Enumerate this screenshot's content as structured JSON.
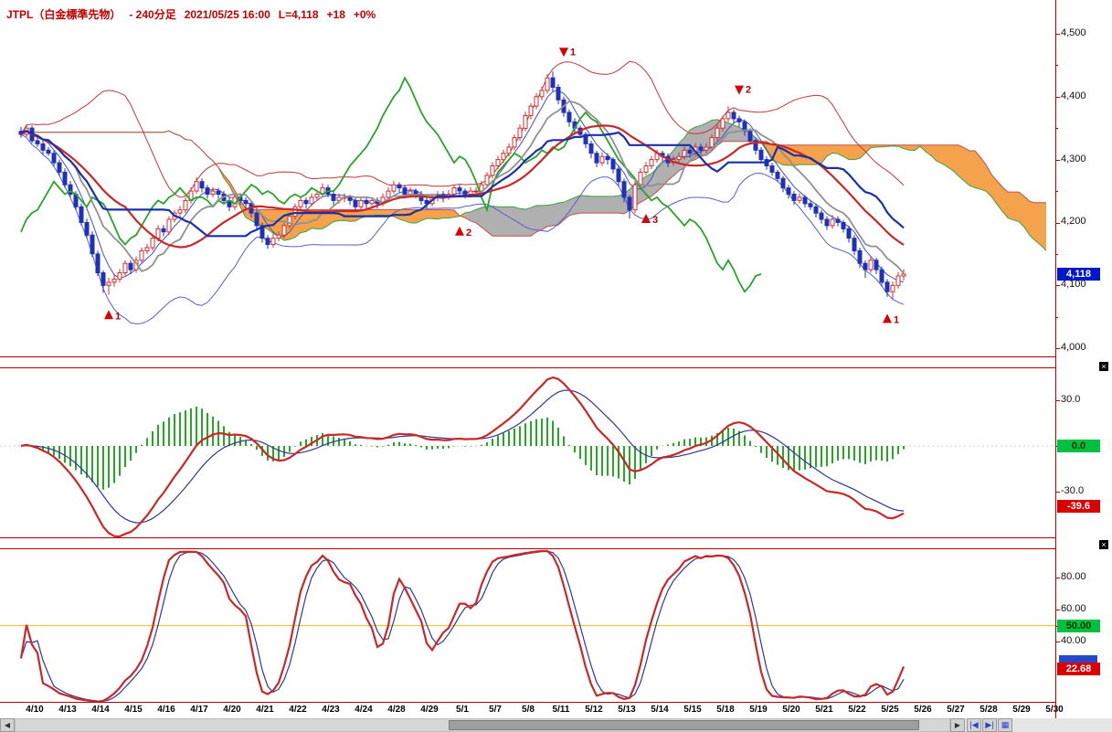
{
  "title": {
    "instrument": "JTPL（白金標準先物）",
    "timeframe": "- 240分足",
    "datetime": "2021/05/25 16:00",
    "last": "L=4,118",
    "change": "+18",
    "change_pct": "+0%"
  },
  "ui": {
    "close_icon": "×"
  },
  "price_axis": {
    "labels": [
      {
        "text": "4,500",
        "value": 4500
      },
      {
        "text": "4,400",
        "value": 4400
      },
      {
        "text": "4,300",
        "value": 4300
      },
      {
        "text": "4,200",
        "value": 4200
      },
      {
        "text": "4,100",
        "value": 4100
      },
      {
        "text": "4,000",
        "value": 4000
      }
    ],
    "current": {
      "text": "4,118",
      "value": 4118
    }
  },
  "macd_panel": {
    "upper_label": {
      "text": "30.0",
      "value": 30
    },
    "zero_badge": {
      "text": "0.0",
      "value": 0
    },
    "lower_label": {
      "text": "-30.0",
      "value": -30
    },
    "current": {
      "text": "-39.6",
      "value": -39.6
    }
  },
  "stoch_panel": {
    "labels": [
      {
        "text": "80.00",
        "value": 80
      },
      {
        "text": "60.00",
        "value": 60
      },
      {
        "text": "40.00",
        "value": 40
      }
    ],
    "mid_badge": {
      "text": "50.00",
      "value": 50
    },
    "current": {
      "text": "22.68",
      "value": 22.68
    }
  },
  "x_axis": {
    "labels": [
      "4/10",
      "4/13",
      "4/14",
      "4/15",
      "4/16",
      "4/17",
      "4/20",
      "4/21",
      "4/22",
      "4/23",
      "4/24",
      "4/28",
      "4/29",
      "5/1",
      "5/7",
      "5/8",
      "5/11",
      "5/12",
      "5/13",
      "5/14",
      "5/15",
      "5/18",
      "5/19",
      "5/20",
      "5/21",
      "5/22",
      "5/25",
      "5/26",
      "5/27",
      "5/28",
      "5/29",
      "5/30"
    ]
  },
  "scrollbar": {
    "left_arrow": "◀",
    "right_arrow": "▶",
    "tools": [
      {
        "glyph": "|◀",
        "name": "jump-start-button"
      },
      {
        "glyph": "▶|",
        "name": "jump-end-button"
      },
      {
        "glyph": "▦",
        "name": "chart-layout-button"
      }
    ]
  },
  "colors": {
    "frame": "#b00000",
    "title": "#c00000",
    "up": "#cc3030",
    "down": "#2030b8",
    "cloud_neutral": "#b0b0b0",
    "cloud_bear": "#f4a24c",
    "senkou_a": "#40a040",
    "senkou_b": "#c05050",
    "band_upper": "#c03838",
    "band_lower": "#5560c8",
    "ma_fast": "#4050c0",
    "chikou": "#28a428",
    "tenkan": "#909090",
    "ma_main": "#c82828",
    "kijun": "#1830a8",
    "marker": "#d80000",
    "marker_text": "#b00000",
    "hist": "#28a428",
    "macd": "#c82828",
    "signal": "#303890",
    "mid50": "#e0c840",
    "stoch_k": "#c82828",
    "stoch_d": "#303890",
    "price_badge_bg": "#0018c8",
    "positive_badge_bg": "#00c040",
    "negative_badge_bg": "#d80000",
    "secondary_badge_bg": "#2848c8"
  },
  "chart_data": {
    "type": "candlestick",
    "instrument": "JTPL 白金標準先物",
    "bar_interval": "240分",
    "price_range": [
      4000,
      4500
    ],
    "future_bars": 26,
    "indicators": {
      "overlays": [
        "ichimoku",
        "bollinger"
      ],
      "panel2": "MACD",
      "panel3": "stochastics"
    },
    "ohlc": [
      [
        4345,
        4352,
        4335,
        4340
      ],
      [
        4340,
        4356,
        4336,
        4350
      ],
      [
        4350,
        4354,
        4326,
        4330
      ],
      [
        4330,
        4336,
        4320,
        4325
      ],
      [
        4325,
        4330,
        4308,
        4315
      ],
      [
        4315,
        4320,
        4306,
        4310
      ],
      [
        4310,
        4314,
        4290,
        4295
      ],
      [
        4295,
        4300,
        4274,
        4280
      ],
      [
        4280,
        4286,
        4255,
        4260
      ],
      [
        4260,
        4266,
        4240,
        4245
      ],
      [
        4245,
        4250,
        4220,
        4225
      ],
      [
        4225,
        4230,
        4195,
        4200
      ],
      [
        4200,
        4206,
        4175,
        4180
      ],
      [
        4180,
        4186,
        4145,
        4150
      ],
      [
        4150,
        4155,
        4115,
        4120
      ],
      [
        4120,
        4124,
        4088,
        4100
      ],
      [
        4100,
        4112,
        4085,
        4105
      ],
      [
        4105,
        4118,
        4098,
        4110
      ],
      [
        4110,
        4126,
        4105,
        4120
      ],
      [
        4120,
        4140,
        4115,
        4135
      ],
      [
        4135,
        4140,
        4118,
        4125
      ],
      [
        4125,
        4146,
        4120,
        4140
      ],
      [
        4140,
        4160,
        4136,
        4155
      ],
      [
        4155,
        4166,
        4150,
        4160
      ],
      [
        4160,
        4180,
        4155,
        4175
      ],
      [
        4175,
        4196,
        4170,
        4190
      ],
      [
        4190,
        4196,
        4178,
        4185
      ],
      [
        4185,
        4210,
        4180,
        4205
      ],
      [
        4205,
        4220,
        4200,
        4215
      ],
      [
        4215,
        4226,
        4210,
        4220
      ],
      [
        4220,
        4240,
        4215,
        4235
      ],
      [
        4235,
        4256,
        4230,
        4250
      ],
      [
        4250,
        4272,
        4246,
        4265
      ],
      [
        4265,
        4270,
        4248,
        4255
      ],
      [
        4255,
        4260,
        4238,
        4245
      ],
      [
        4245,
        4256,
        4240,
        4250
      ],
      [
        4250,
        4255,
        4238,
        4245
      ],
      [
        4245,
        4250,
        4228,
        4235
      ],
      [
        4235,
        4240,
        4218,
        4225
      ],
      [
        4225,
        4246,
        4220,
        4240
      ],
      [
        4240,
        4246,
        4228,
        4235
      ],
      [
        4235,
        4240,
        4222,
        4230
      ],
      [
        4230,
        4234,
        4208,
        4215
      ],
      [
        4215,
        4220,
        4188,
        4195
      ],
      [
        4195,
        4200,
        4168,
        4175
      ],
      [
        4175,
        4180,
        4158,
        4165
      ],
      [
        4165,
        4182,
        4160,
        4175
      ],
      [
        4175,
        4186,
        4170,
        4180
      ],
      [
        4180,
        4200,
        4175,
        4195
      ],
      [
        4195,
        4216,
        4190,
        4210
      ],
      [
        4210,
        4230,
        4205,
        4225
      ],
      [
        4225,
        4240,
        4220,
        4235
      ],
      [
        4235,
        4240,
        4222,
        4230
      ],
      [
        4230,
        4246,
        4226,
        4240
      ],
      [
        4240,
        4250,
        4234,
        4245
      ],
      [
        4245,
        4262,
        4240,
        4255
      ],
      [
        4255,
        4260,
        4240,
        4245
      ],
      [
        4245,
        4250,
        4228,
        4235
      ],
      [
        4235,
        4246,
        4230,
        4240
      ],
      [
        4240,
        4246,
        4232,
        4240
      ],
      [
        4240,
        4244,
        4228,
        4235
      ],
      [
        4235,
        4240,
        4218,
        4225
      ],
      [
        4225,
        4240,
        4220,
        4235
      ],
      [
        4235,
        4240,
        4222,
        4230
      ],
      [
        4230,
        4240,
        4226,
        4235
      ],
      [
        4235,
        4240,
        4222,
        4230
      ],
      [
        4230,
        4246,
        4226,
        4240
      ],
      [
        4240,
        4256,
        4236,
        4250
      ],
      [
        4250,
        4266,
        4246,
        4260
      ],
      [
        4260,
        4264,
        4248,
        4255
      ],
      [
        4255,
        4260,
        4238,
        4245
      ],
      [
        4245,
        4256,
        4240,
        4250
      ],
      [
        4250,
        4254,
        4238,
        4245
      ],
      [
        4245,
        4250,
        4228,
        4235
      ],
      [
        4235,
        4240,
        4222,
        4230
      ],
      [
        4230,
        4246,
        4226,
        4240
      ],
      [
        4240,
        4250,
        4234,
        4245
      ],
      [
        4245,
        4250,
        4232,
        4240
      ],
      [
        4240,
        4252,
        4236,
        4245
      ],
      [
        4245,
        4260,
        4240,
        4255
      ],
      [
        4255,
        4260,
        4242,
        4250
      ],
      [
        4250,
        4254,
        4238,
        4245
      ],
      [
        4245,
        4256,
        4240,
        4250
      ],
      [
        4250,
        4256,
        4242,
        4250
      ],
      [
        4250,
        4266,
        4246,
        4260
      ],
      [
        4260,
        4280,
        4255,
        4275
      ],
      [
        4275,
        4296,
        4270,
        4290
      ],
      [
        4290,
        4306,
        4285,
        4300
      ],
      [
        4300,
        4316,
        4295,
        4310
      ],
      [
        4310,
        4326,
        4305,
        4320
      ],
      [
        4320,
        4340,
        4315,
        4335
      ],
      [
        4335,
        4356,
        4330,
        4350
      ],
      [
        4350,
        4376,
        4345,
        4370
      ],
      [
        4370,
        4390,
        4364,
        4385
      ],
      [
        4385,
        4406,
        4380,
        4400
      ],
      [
        4400,
        4416,
        4394,
        4410
      ],
      [
        4410,
        4436,
        4405,
        4430
      ],
      [
        4430,
        4440,
        4408,
        4415
      ],
      [
        4415,
        4420,
        4388,
        4395
      ],
      [
        4395,
        4400,
        4368,
        4375
      ],
      [
        4375,
        4380,
        4352,
        4360
      ],
      [
        4360,
        4366,
        4342,
        4350
      ],
      [
        4350,
        4354,
        4334,
        4340
      ],
      [
        4340,
        4344,
        4318,
        4325
      ],
      [
        4325,
        4330,
        4302,
        4310
      ],
      [
        4310,
        4314,
        4288,
        4295
      ],
      [
        4295,
        4312,
        4290,
        4305
      ],
      [
        4305,
        4310,
        4292,
        4300
      ],
      [
        4300,
        4304,
        4278,
        4285
      ],
      [
        4285,
        4290,
        4258,
        4265
      ],
      [
        4265,
        4270,
        4232,
        4240
      ],
      [
        4240,
        4244,
        4206,
        4220
      ],
      [
        4220,
        4266,
        4215,
        4260
      ],
      [
        4260,
        4286,
        4255,
        4280
      ],
      [
        4280,
        4296,
        4275,
        4290
      ],
      [
        4290,
        4306,
        4285,
        4300
      ],
      [
        4300,
        4316,
        4295,
        4310
      ],
      [
        4310,
        4314,
        4298,
        4305
      ],
      [
        4305,
        4310,
        4288,
        4295
      ],
      [
        4295,
        4306,
        4290,
        4300
      ],
      [
        4300,
        4311,
        4295,
        4305
      ],
      [
        4305,
        4321,
        4300,
        4315
      ],
      [
        4315,
        4320,
        4303,
        4310
      ],
      [
        4310,
        4326,
        4305,
        4320
      ],
      [
        4320,
        4325,
        4308,
        4315
      ],
      [
        4315,
        4326,
        4310,
        4320
      ],
      [
        4320,
        4340,
        4315,
        4335
      ],
      [
        4335,
        4356,
        4330,
        4350
      ],
      [
        4350,
        4370,
        4345,
        4365
      ],
      [
        4365,
        4385,
        4360,
        4375
      ],
      [
        4375,
        4380,
        4358,
        4365
      ],
      [
        4365,
        4370,
        4352,
        4360
      ],
      [
        4360,
        4364,
        4338,
        4345
      ],
      [
        4345,
        4350,
        4324,
        4330
      ],
      [
        4330,
        4334,
        4308,
        4315
      ],
      [
        4315,
        4320,
        4294,
        4300
      ],
      [
        4300,
        4305,
        4284,
        4290
      ],
      [
        4290,
        4295,
        4274,
        4280
      ],
      [
        4280,
        4284,
        4264,
        4270
      ],
      [
        4270,
        4274,
        4248,
        4255
      ],
      [
        4255,
        4260,
        4238,
        4245
      ],
      [
        4245,
        4250,
        4228,
        4235
      ],
      [
        4235,
        4246,
        4230,
        4240
      ],
      [
        4240,
        4244,
        4224,
        4230
      ],
      [
        4230,
        4236,
        4220,
        4225
      ],
      [
        4225,
        4230,
        4208,
        4215
      ],
      [
        4215,
        4220,
        4198,
        4205
      ],
      [
        4205,
        4210,
        4188,
        4195
      ],
      [
        4195,
        4212,
        4190,
        4205
      ],
      [
        4205,
        4210,
        4194,
        4200
      ],
      [
        4200,
        4204,
        4184,
        4190
      ],
      [
        4190,
        4195,
        4168,
        4175
      ],
      [
        4175,
        4180,
        4148,
        4155
      ],
      [
        4155,
        4160,
        4128,
        4135
      ],
      [
        4135,
        4140,
        4112,
        4125
      ],
      [
        4125,
        4146,
        4120,
        4140
      ],
      [
        4140,
        4144,
        4118,
        4125
      ],
      [
        4125,
        4130,
        4098,
        4105
      ],
      [
        4105,
        4110,
        4082,
        4090
      ],
      [
        4090,
        4106,
        4078,
        4100
      ],
      [
        4100,
        4121,
        4095,
        4115
      ],
      [
        4115,
        4126,
        4108,
        4118
      ]
    ],
    "markers": [
      {
        "dir": "up",
        "num": "1",
        "bar": 16,
        "price": 4052
      },
      {
        "dir": "up",
        "num": "2",
        "bar": 80,
        "price": 4185
      },
      {
        "dir": "up",
        "num": "3",
        "bar": 114,
        "price": 4205
      },
      {
        "dir": "down",
        "num": "1",
        "bar": 99,
        "price": 4472
      },
      {
        "dir": "down",
        "num": "2",
        "bar": 131,
        "price": 4412
      },
      {
        "dir": "up",
        "num": "1",
        "bar": 158,
        "price": 4046
      }
    ]
  }
}
